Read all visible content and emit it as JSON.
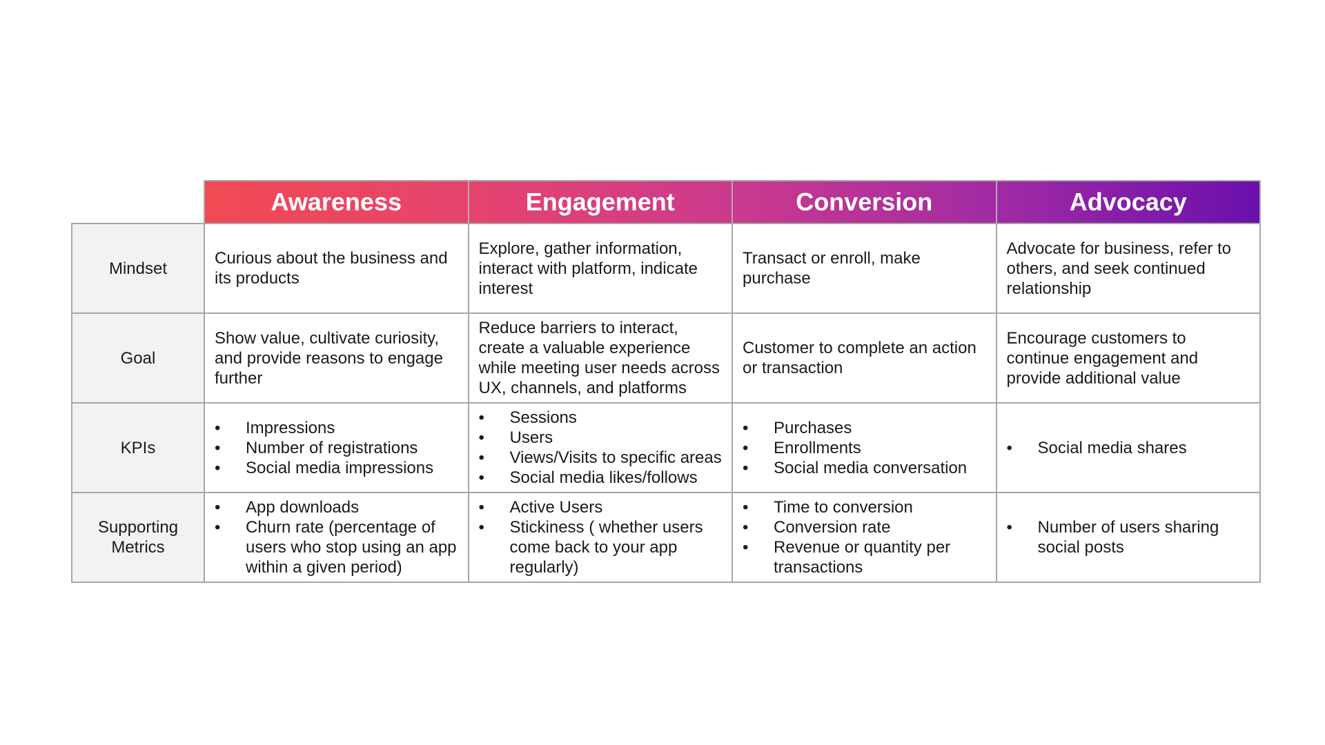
{
  "stages": [
    "Awareness",
    "Engagement",
    "Conversion",
    "Advocacy"
  ],
  "bullet_char": "•",
  "rows": {
    "mindset": {
      "label": "Mindset",
      "cells": [
        "Curious about the business and its products",
        "Explore, gather information, interact with platform, indicate interest",
        "Transact or enroll, make purchase",
        "Advocate for business, refer to others, and seek continued relationship"
      ]
    },
    "goal": {
      "label": "Goal",
      "cells": [
        "Show value, cultivate curiosity, and provide reasons to engage further",
        "Reduce barriers to interact, create a valuable experience while meeting user needs across UX, channels, and platforms",
        "Customer to complete an action or transaction",
        "Encourage customers to continue engagement and provide additional value"
      ]
    },
    "kpis": {
      "label": "KPIs",
      "cells": [
        [
          "Impressions",
          "Number of registrations",
          "Social media impressions"
        ],
        [
          "Sessions",
          "Users",
          "Views/Visits to specific areas",
          "Social media likes/follows"
        ],
        [
          "Purchases",
          "Enrollments",
          "Social media conversation"
        ],
        [
          "Social media shares"
        ]
      ]
    },
    "supporting_metrics": {
      "label_line1": "Supporting",
      "label_line2": "Metrics",
      "cells": [
        [
          "App downloads",
          "Churn rate (percentage of users who stop using an app within a given period)"
        ],
        [
          "Active Users",
          "Stickiness ( whether users come back to your app regularly)"
        ],
        [
          "Time to conversion",
          "Conversion rate",
          "Revenue or quantity per transactions"
        ],
        [
          "Number of users sharing social posts"
        ]
      ]
    }
  }
}
